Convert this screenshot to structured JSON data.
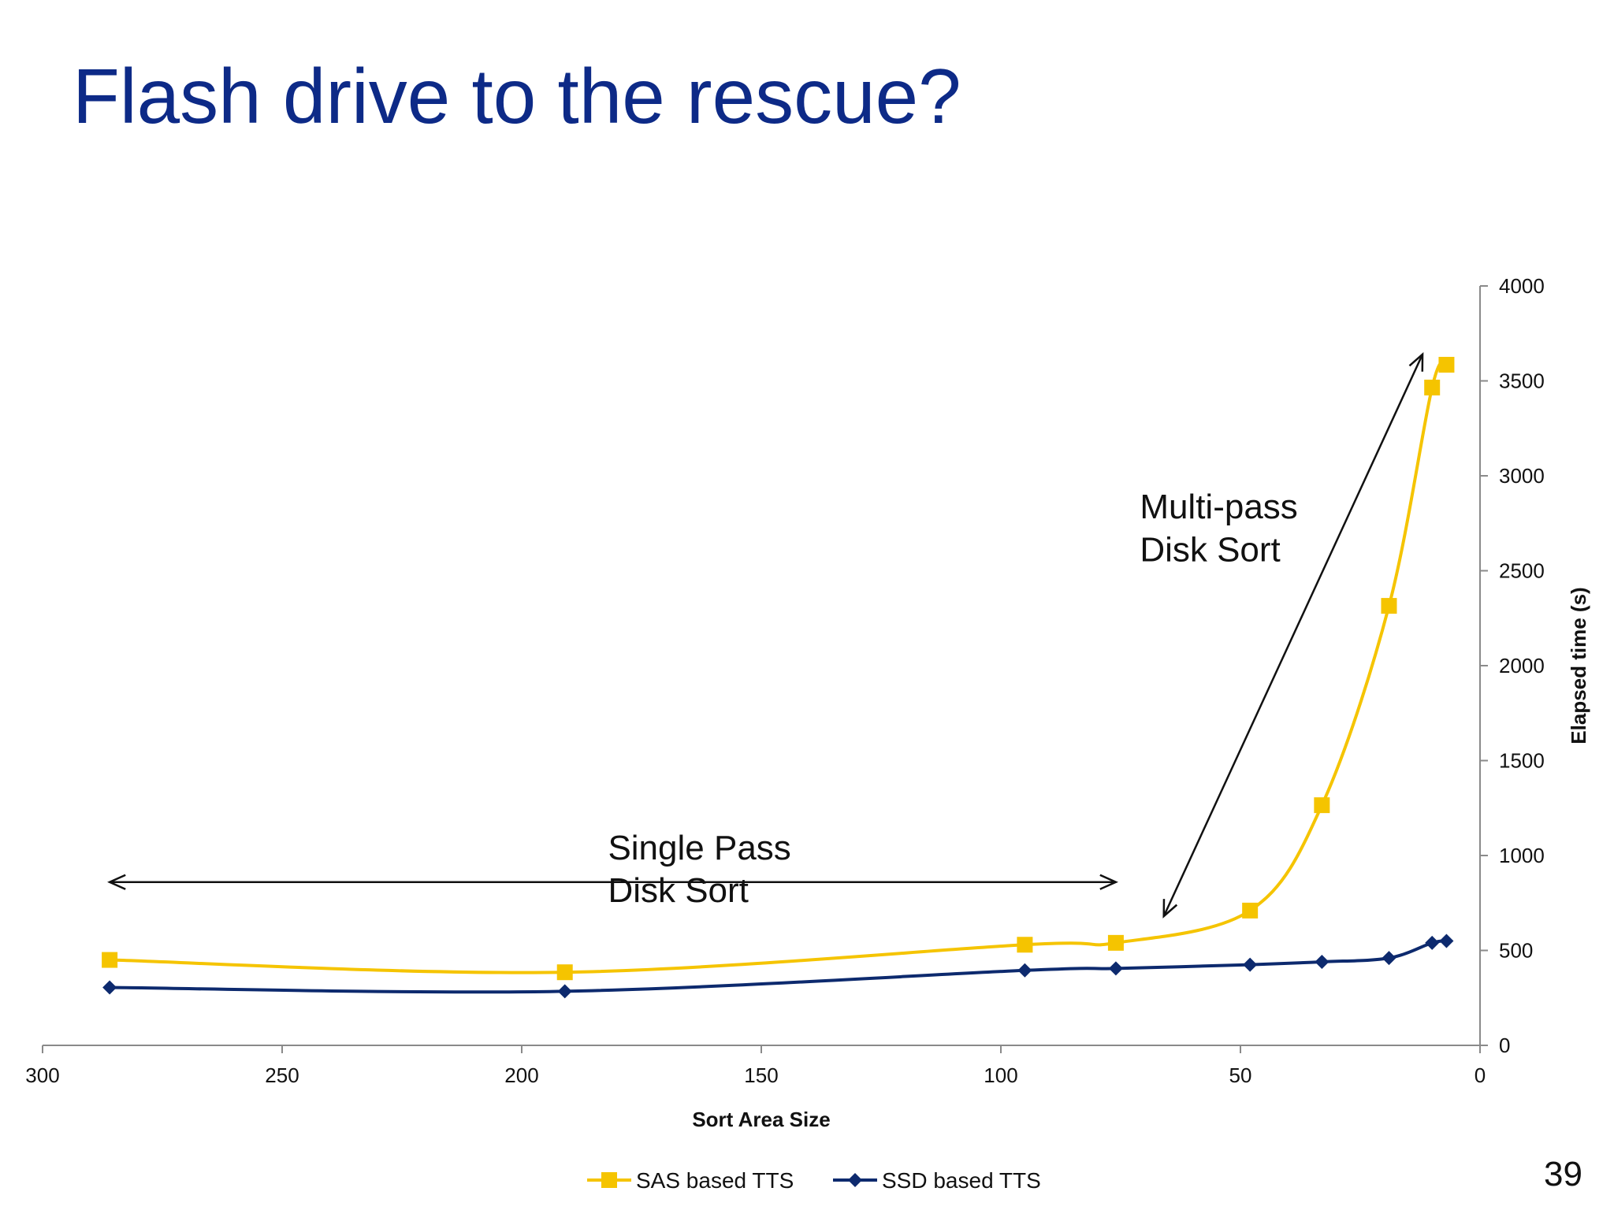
{
  "slide": {
    "title": "Flash drive to the rescue?",
    "page_number": "39"
  },
  "colors": {
    "title": "#0d2a87",
    "sas": "#f5c400",
    "ssd": "#0d2a6e",
    "axis": "#8a8a8a",
    "arrow": "#111111"
  },
  "chart_data": {
    "type": "line",
    "xlabel": "Sort Area Size",
    "ylabel": "Elapsed time (s)",
    "xlim": [
      300,
      0
    ],
    "ylim": [
      0,
      4000
    ],
    "x_reversed": true,
    "y_axis_side": "right",
    "x_ticks": [
      300,
      250,
      200,
      150,
      100,
      50,
      0
    ],
    "y_ticks": [
      0,
      500,
      1000,
      1500,
      2000,
      2500,
      3000,
      3500,
      4000
    ],
    "grid": false,
    "smooth": true,
    "legend": "bottom-center",
    "series": [
      {
        "name": "SAS based TTS",
        "marker": "square",
        "points": [
          {
            "x": 286,
            "y": 450
          },
          {
            "x": 191,
            "y": 385
          },
          {
            "x": 95,
            "y": 530
          },
          {
            "x": 76,
            "y": 540
          },
          {
            "x": 48,
            "y": 710
          },
          {
            "x": 33,
            "y": 1265
          },
          {
            "x": 19,
            "y": 2315
          },
          {
            "x": 10,
            "y": 3465
          },
          {
            "x": 7,
            "y": 3585
          }
        ]
      },
      {
        "name": "SSD based TTS",
        "marker": "diamond",
        "points": [
          {
            "x": 286,
            "y": 305
          },
          {
            "x": 191,
            "y": 285
          },
          {
            "x": 95,
            "y": 395
          },
          {
            "x": 76,
            "y": 405
          },
          {
            "x": 48,
            "y": 425
          },
          {
            "x": 33,
            "y": 440
          },
          {
            "x": 19,
            "y": 460
          },
          {
            "x": 10,
            "y": 540
          },
          {
            "x": 7,
            "y": 550
          }
        ]
      }
    ],
    "annotations": [
      {
        "lines": [
          "Single Pass",
          "Disk Sort"
        ],
        "text_x": 182,
        "text_y": [
          980,
          755
        ],
        "arrow": {
          "type": "double",
          "from": {
            "x": 286,
            "y": 860
          },
          "to": {
            "x": 76,
            "y": 860
          }
        }
      },
      {
        "lines": [
          "Multi-pass",
          "Disk Sort"
        ],
        "text_x": 71,
        "text_y": [
          2775,
          2550
        ],
        "arrow": {
          "type": "double",
          "from": {
            "x": 66,
            "y": 680
          },
          "to": {
            "x": 12,
            "y": 3640
          }
        }
      }
    ]
  }
}
